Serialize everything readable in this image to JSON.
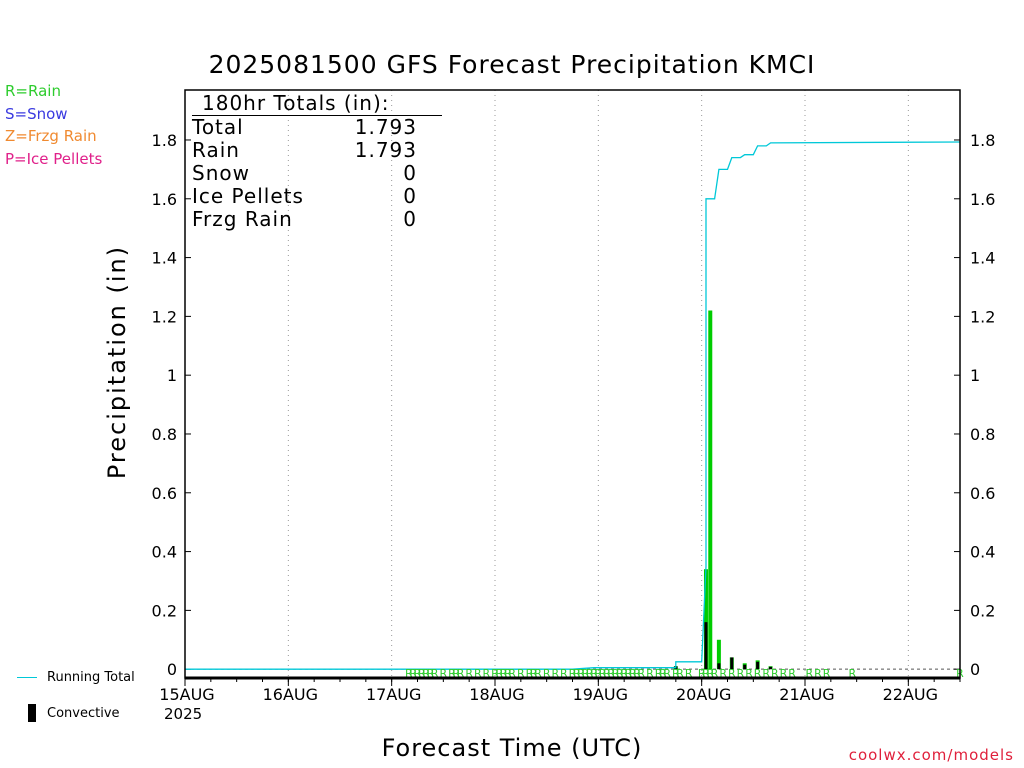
{
  "title": "2025081500 GFS Forecast Precipitation KMCI",
  "legend": [
    {
      "label": "R=Rain",
      "color": "#2ecc2e"
    },
    {
      "label": "S=Snow",
      "color": "#3a3ae0"
    },
    {
      "label": "Z=Frzg Rain",
      "color": "#f08a30"
    },
    {
      "label": "P=Ice Pellets",
      "color": "#e0208a"
    }
  ],
  "totals": {
    "header": "180hr Totals (in):",
    "rows": [
      {
        "label": "Total",
        "value": "1.793"
      },
      {
        "label": "Rain",
        "value": "1.793"
      },
      {
        "label": "Snow",
        "value": "0"
      },
      {
        "label": "Ice Pellets",
        "value": "0"
      },
      {
        "label": "Frzg Rain",
        "value": "0"
      }
    ]
  },
  "bottom_legend": {
    "running_total": "Running Total",
    "convective": "Convective"
  },
  "year": "2025",
  "credit": "coolwx.com/models",
  "colors": {
    "running_total": "#00c8d8",
    "precip_bar": "#00cc00",
    "convective": "#000000",
    "rain_marker": "#2ecc2e"
  },
  "chart_data": {
    "type": "bar",
    "title": "2025081500 GFS Forecast Precipitation KMCI",
    "xlabel": "Forecast Time (UTC)",
    "ylabel": "Precipitation (in)",
    "ylim": [
      -0.03,
      1.97
    ],
    "xlim_hours": [
      0,
      180
    ],
    "yticks": [
      0,
      0.2,
      0.4,
      0.6,
      0.8,
      1,
      1.2,
      1.4,
      1.6,
      1.8
    ],
    "ytick_labels": [
      "0",
      "0.2",
      "0.4",
      "0.6",
      "0.8",
      "1",
      "1.2",
      "1.4",
      "1.6",
      "1.8"
    ],
    "x_tick_labels": [
      {
        "hour": 0,
        "label": "15AUG"
      },
      {
        "hour": 24,
        "label": "16AUG"
      },
      {
        "hour": 48,
        "label": "17AUG"
      },
      {
        "hour": 72,
        "label": "18AUG"
      },
      {
        "hour": 96,
        "label": "19AUG"
      },
      {
        "hour": 120,
        "label": "20AUG"
      },
      {
        "hour": 144,
        "label": "21AUG"
      },
      {
        "hour": 168,
        "label": "22AUG"
      }
    ],
    "grid": "vertical dotted",
    "series": [
      {
        "name": "Running Total",
        "type": "step-line",
        "points": [
          [
            0,
            0
          ],
          [
            90,
            0
          ],
          [
            95,
            0.005
          ],
          [
            114,
            0.005
          ],
          [
            114,
            0.025
          ],
          [
            120,
            0.025
          ],
          [
            121,
            0.35
          ],
          [
            121,
            1.6
          ],
          [
            123,
            1.6
          ],
          [
            124,
            1.7
          ],
          [
            126,
            1.7
          ],
          [
            127,
            1.74
          ],
          [
            129,
            1.74
          ],
          [
            130,
            1.75
          ],
          [
            132,
            1.75
          ],
          [
            133,
            1.78
          ],
          [
            135,
            1.78
          ],
          [
            136,
            1.79
          ],
          [
            180,
            1.793
          ]
        ]
      },
      {
        "name": "Precipitation",
        "type": "bar",
        "points": [
          [
            114,
            0.01
          ],
          [
            121,
            0.34
          ],
          [
            122,
            1.22
          ],
          [
            124,
            0.1
          ],
          [
            127,
            0.04
          ],
          [
            130,
            0.02
          ],
          [
            133,
            0.03
          ],
          [
            136,
            0.01
          ]
        ]
      },
      {
        "name": "Convective",
        "type": "bar",
        "points": [
          [
            114,
            0.01
          ],
          [
            121,
            0.16
          ],
          [
            124,
            0.02
          ],
          [
            127,
            0.04
          ],
          [
            130,
            0.015
          ],
          [
            133,
            0.025
          ],
          [
            136,
            0.008
          ]
        ]
      }
    ],
    "rain_markers_hours": [
      52,
      53,
      54,
      55,
      56,
      57,
      58,
      60,
      62,
      63,
      64,
      66,
      68,
      70,
      72,
      73,
      74,
      75,
      76,
      78,
      80,
      81,
      82,
      84,
      86,
      88,
      90,
      91,
      92,
      93,
      94,
      95,
      96,
      97,
      98,
      99,
      100,
      101,
      102,
      103,
      104,
      105,
      106,
      108,
      110,
      111,
      112,
      114,
      115,
      117,
      120,
      121,
      122,
      123,
      125,
      127,
      129,
      131,
      133,
      135,
      137,
      139,
      141,
      145,
      147,
      149,
      155,
      180
    ],
    "rain_marker_label": "R"
  }
}
